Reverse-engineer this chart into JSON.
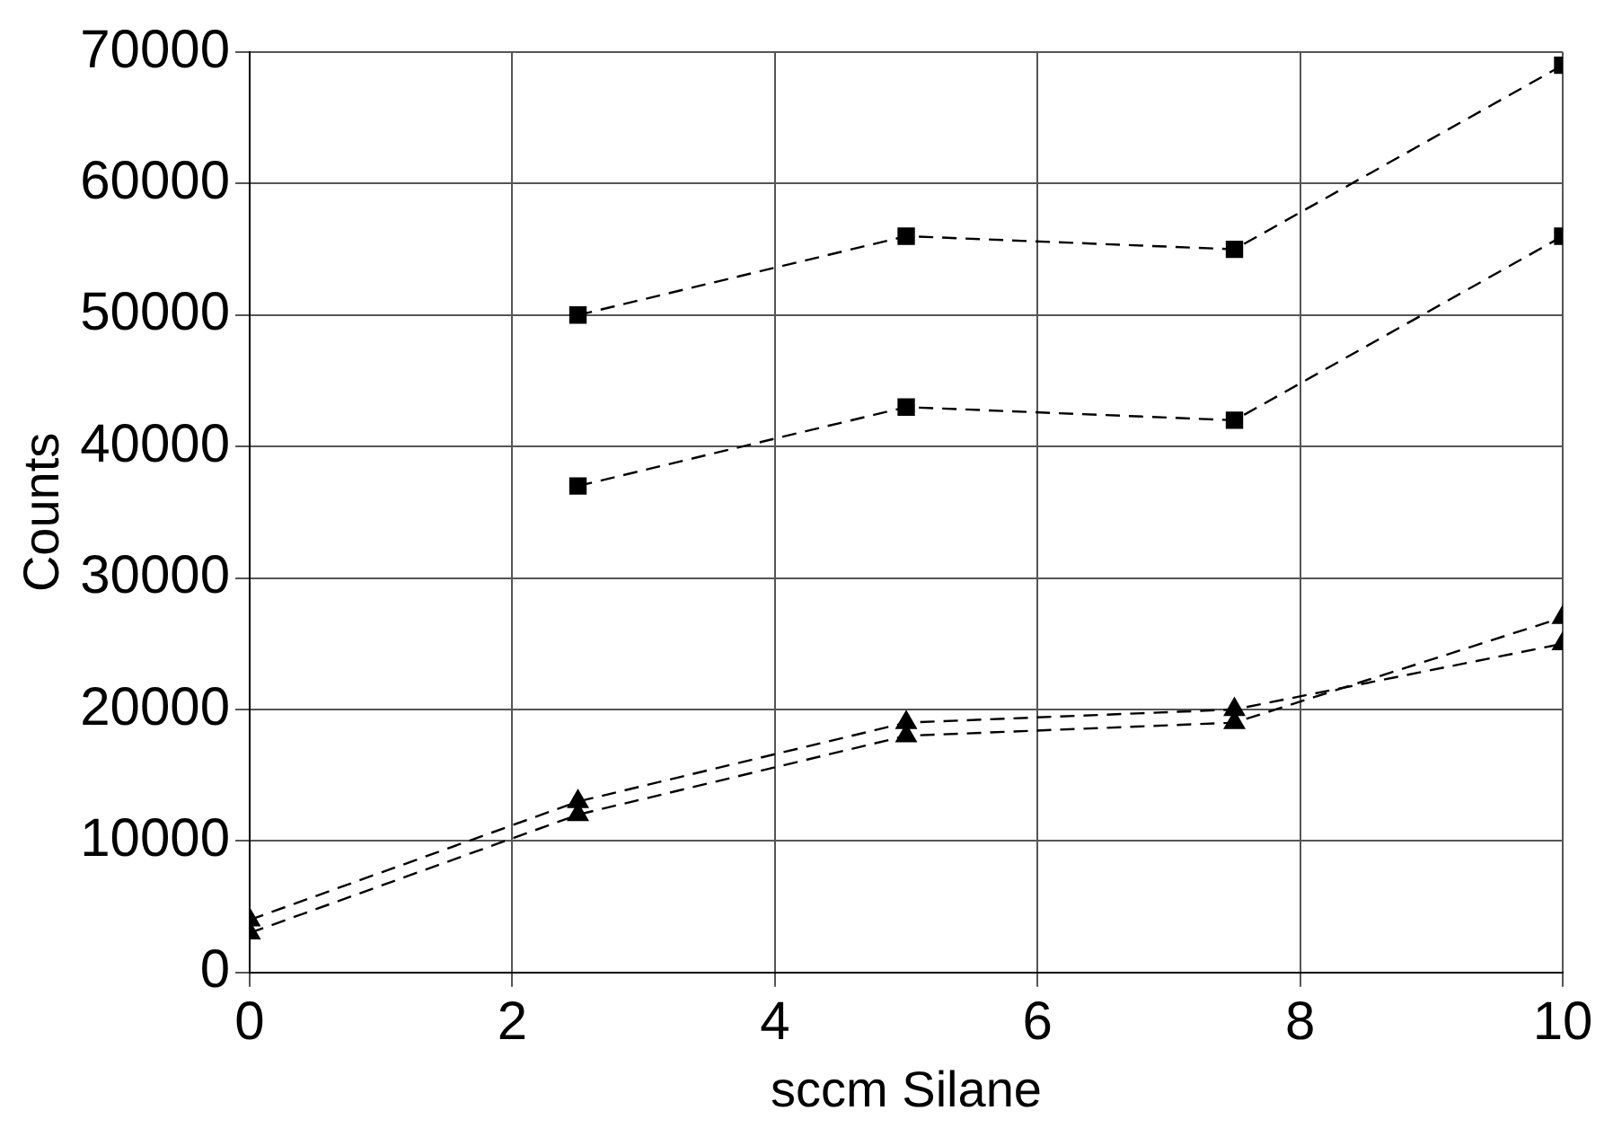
{
  "chart_data": {
    "type": "line",
    "xlabel": "sccm Silane",
    "ylabel": "Counts",
    "x": [
      0,
      2.5,
      5,
      7.5,
      10
    ],
    "series": [
      {
        "color": "#000000",
        "marker": "square",
        "values": [
          null,
          50000,
          56000,
          55000,
          69000
        ]
      },
      {
        "color": "#000000",
        "marker": "square",
        "values": [
          null,
          37000,
          43000,
          42000,
          56000
        ]
      },
      {
        "color": "#000000",
        "marker": "triangle",
        "values": [
          4000,
          13000,
          19000,
          20000,
          25000
        ]
      },
      {
        "color": "#000000",
        "marker": "triangle",
        "values": [
          3000,
          12000,
          18000,
          19000,
          27000
        ]
      }
    ],
    "xlim": [
      0,
      10
    ],
    "xticks": [
      0,
      2,
      4,
      6,
      8,
      10
    ],
    "ylim": [
      0,
      70000
    ],
    "yticks": [
      0,
      10000,
      20000,
      30000,
      40000,
      50000,
      60000,
      70000
    ],
    "grid": true,
    "legend": false,
    "line_style": "dashed"
  }
}
